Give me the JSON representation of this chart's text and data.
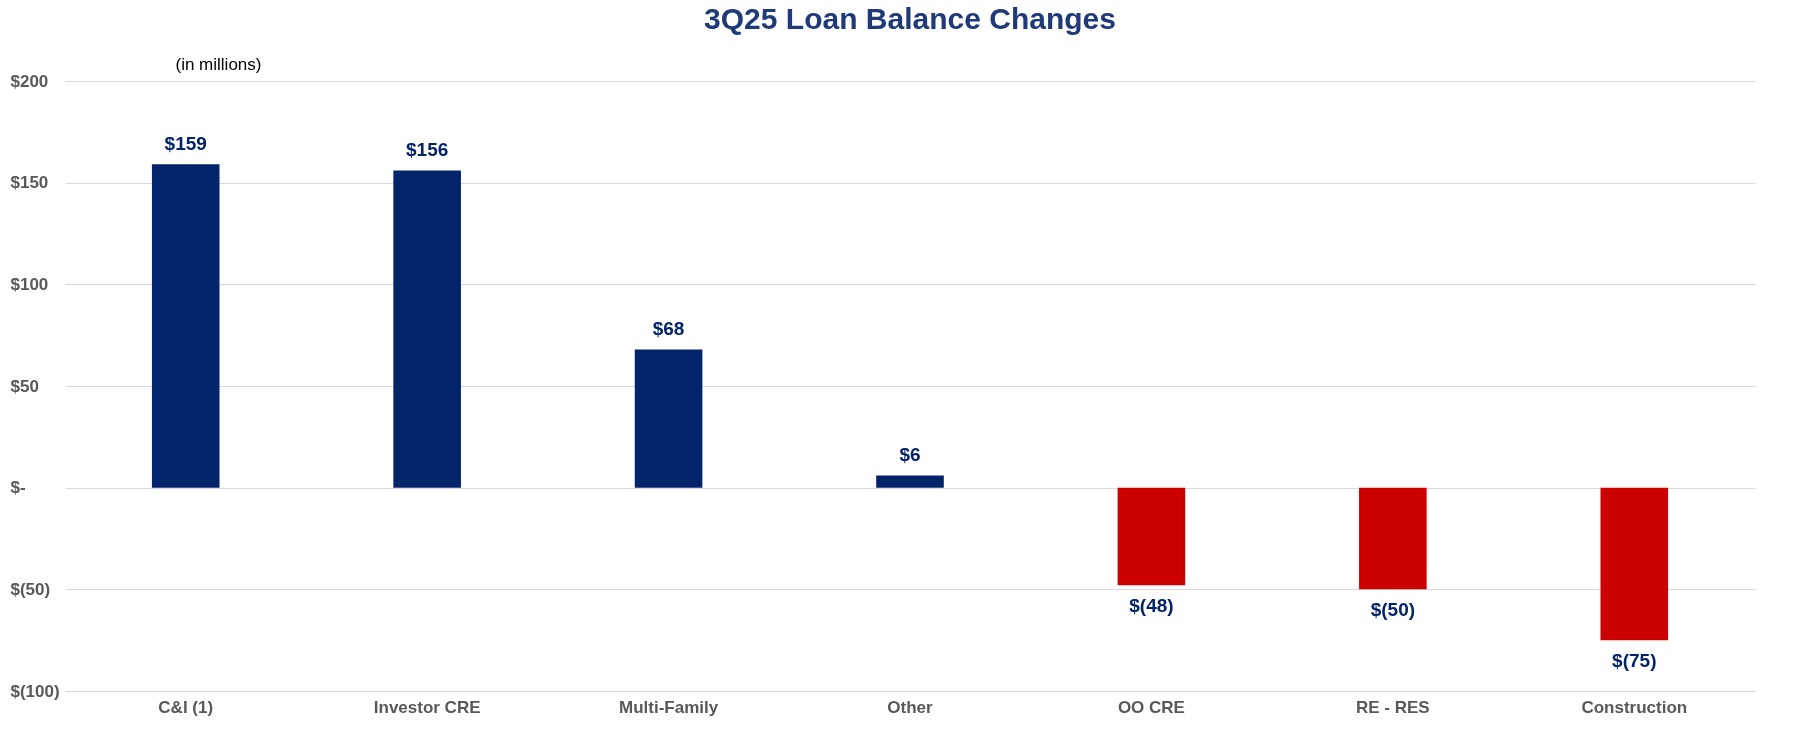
{
  "chart_data": {
    "type": "bar",
    "title": "3Q25 Loan Balance Changes",
    "ylabel": "(in millions)",
    "categories": [
      "C&I (1)",
      "Investor CRE",
      "Multi-Family",
      "Other",
      "OO CRE",
      "RE - RES",
      "Construction"
    ],
    "values": [
      159,
      156,
      68,
      6,
      -48,
      -50,
      -75
    ],
    "colors": [
      "#03236b",
      "#03236b",
      "#03236b",
      "#03236b",
      "#cc0000",
      "#cc0000",
      "#cc0000"
    ],
    "value_labels": [
      "$159",
      "$156",
      "$68",
      "$6",
      "$(48)",
      "$(50)",
      "$(75)"
    ],
    "ylim": [
      -100,
      200
    ],
    "yticks": [
      {
        "value": -100,
        "label": "$(100)"
      },
      {
        "value": -50,
        "label": "$(50)"
      },
      {
        "value": 0,
        "label": "$-"
      },
      {
        "value": 50,
        "label": "$50"
      },
      {
        "value": 100,
        "label": "$100"
      },
      {
        "value": 150,
        "label": "$150"
      },
      {
        "value": 200,
        "label": "$200"
      }
    ],
    "grid": "y"
  }
}
